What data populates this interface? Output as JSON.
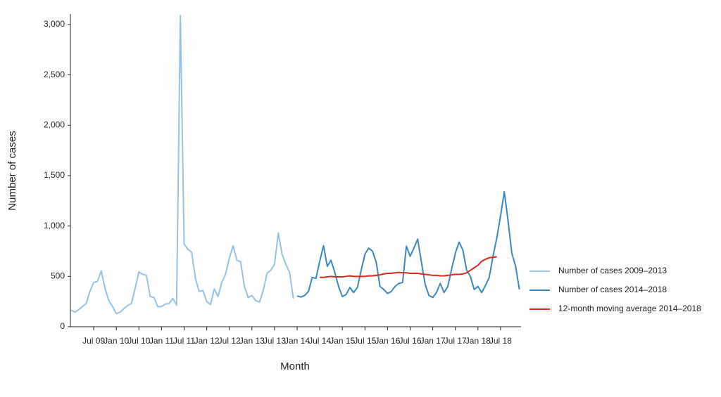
{
  "chart_data": {
    "type": "line",
    "x_label": "Month",
    "y_label": "Number of cases",
    "categories": [
      null,
      null,
      null,
      null,
      null,
      null,
      "Jul 09",
      null,
      null,
      null,
      null,
      null,
      "Jan 10",
      null,
      null,
      null,
      null,
      null,
      "Jul 10",
      null,
      null,
      null,
      null,
      null,
      "Jan 11",
      null,
      null,
      null,
      null,
      null,
      "Jul 11",
      null,
      null,
      null,
      null,
      null,
      "Jan 12",
      null,
      null,
      null,
      null,
      null,
      "Jul 12",
      null,
      null,
      null,
      null,
      null,
      "Jan 13",
      null,
      null,
      null,
      null,
      null,
      "Jul 13",
      null,
      null,
      null,
      null,
      null,
      "Jan 14",
      null,
      null,
      null,
      null,
      null,
      "Jul 14",
      null,
      null,
      null,
      null,
      null,
      "Jan 15",
      null,
      null,
      null,
      null,
      null,
      "Jul 15",
      null,
      null,
      null,
      null,
      null,
      "Jan 16",
      null,
      null,
      null,
      null,
      null,
      "Jul 16",
      null,
      null,
      null,
      null,
      null,
      "Jan 17",
      null,
      null,
      null,
      null,
      null,
      "Jul 17",
      null,
      null,
      null,
      null,
      null,
      "Jan 18",
      null,
      null,
      null,
      null,
      null,
      "Jul 18",
      null,
      null,
      null,
      null,
      null
    ],
    "series": [
      {
        "name": "Number of cases 2009–2013",
        "color": "#92c3e6",
        "values": [
          165,
          145,
          170,
          200,
          230,
          350,
          440,
          450,
          555,
          380,
          260,
          200,
          130,
          145,
          180,
          210,
          230,
          380,
          545,
          520,
          510,
          300,
          290,
          200,
          200,
          225,
          230,
          280,
          215,
          3090,
          820,
          770,
          740,
          480,
          350,
          360,
          250,
          220,
          375,
          300,
          440,
          520,
          680,
          805,
          660,
          645,
          400,
          290,
          310,
          260,
          245,
          360,
          530,
          560,
          620,
          930,
          720,
          620,
          540,
          280,
          null,
          null,
          null,
          null,
          null,
          null,
          null,
          null,
          null,
          null,
          null,
          null,
          null,
          null,
          null,
          null,
          null,
          null,
          null,
          null,
          null,
          null,
          null,
          null,
          null,
          null,
          null,
          null,
          null,
          null,
          null,
          null,
          null,
          null,
          null,
          null,
          null,
          null,
          null,
          null,
          null,
          null,
          null,
          null,
          null,
          null,
          null,
          null,
          null,
          null,
          null,
          null,
          null,
          null,
          null,
          null,
          null,
          null,
          null,
          null
        ]
      },
      {
        "name": "Number of cases 2014–2018",
        "color": "#3a88c2",
        "values": [
          null,
          null,
          null,
          null,
          null,
          null,
          null,
          null,
          null,
          null,
          null,
          null,
          null,
          null,
          null,
          null,
          null,
          null,
          null,
          null,
          null,
          null,
          null,
          null,
          null,
          null,
          null,
          null,
          null,
          null,
          null,
          null,
          null,
          null,
          null,
          null,
          null,
          null,
          null,
          null,
          null,
          null,
          null,
          null,
          null,
          null,
          null,
          null,
          null,
          null,
          null,
          null,
          null,
          null,
          null,
          null,
          null,
          null,
          null,
          null,
          305,
          295,
          310,
          350,
          490,
          480,
          650,
          805,
          600,
          660,
          540,
          400,
          300,
          320,
          390,
          340,
          390,
          560,
          720,
          780,
          750,
          640,
          400,
          370,
          330,
          350,
          400,
          430,
          440,
          800,
          700,
          780,
          870,
          640,
          420,
          310,
          290,
          340,
          430,
          340,
          400,
          570,
          730,
          840,
          760,
          560,
          500,
          370,
          400,
          340,
          410,
          490,
          700,
          880,
          1100,
          1340,
          1050,
          730,
          600,
          370
        ]
      },
      {
        "name": "12-month moving average 2014–2018",
        "color": "#d62a1e",
        "values": [
          null,
          null,
          null,
          null,
          null,
          null,
          null,
          null,
          null,
          null,
          null,
          null,
          null,
          null,
          null,
          null,
          null,
          null,
          null,
          null,
          null,
          null,
          null,
          null,
          null,
          null,
          null,
          null,
          null,
          null,
          null,
          null,
          null,
          null,
          null,
          null,
          null,
          null,
          null,
          null,
          null,
          null,
          null,
          null,
          null,
          null,
          null,
          null,
          null,
          null,
          null,
          null,
          null,
          null,
          null,
          null,
          null,
          null,
          null,
          null,
          null,
          null,
          null,
          null,
          null,
          null,
          490,
          490,
          495,
          500,
          495,
          495,
          495,
          500,
          505,
          500,
          500,
          500,
          500,
          505,
          505,
          510,
          515,
          525,
          530,
          530,
          535,
          540,
          535,
          535,
          530,
          530,
          530,
          525,
          520,
          515,
          510,
          510,
          505,
          505,
          510,
          515,
          520,
          520,
          525,
          535,
          560,
          585,
          610,
          650,
          670,
          685,
          690,
          695,
          null,
          null,
          null,
          null,
          null,
          null
        ]
      }
    ],
    "ylim": [
      0,
      3090
    ],
    "yticks": [
      0,
      500,
      {
        "value": 1000,
        "label": "1,000"
      },
      {
        "value": 1500,
        "label": "1,500"
      },
      {
        "value": 2000,
        "label": "2,000"
      },
      {
        "value": 2500,
        "label": "2,500"
      },
      {
        "value": 3000,
        "label": "3,000"
      }
    ],
    "grid": false
  }
}
